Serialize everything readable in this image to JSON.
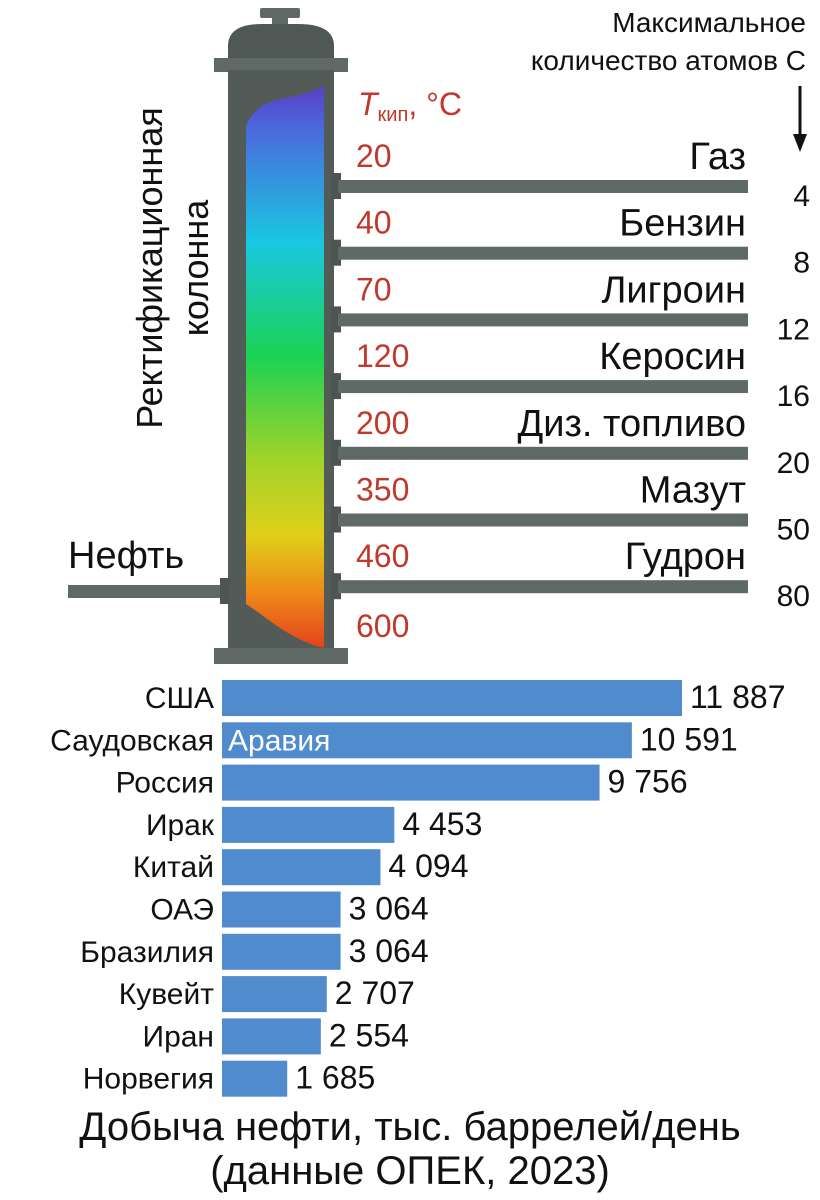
{
  "column": {
    "title_line1": "Ректификационная",
    "title_line2": "колонна",
    "input_label": "Нефть",
    "temp_header_symbol": "T",
    "temp_header_subscript": "кип",
    "temp_header_unit": ", °C",
    "atoms_header_line1": "Максимальное",
    "atoms_header_line2": "количество атомов С",
    "fractions": [
      {
        "name": "Газ",
        "temp": "20",
        "atoms": "4"
      },
      {
        "name": "Бензин",
        "temp": "40",
        "atoms": "8"
      },
      {
        "name": "Лигроин",
        "temp": "70",
        "atoms": "12"
      },
      {
        "name": "Керосин",
        "temp": "120",
        "atoms": "16"
      },
      {
        "name": "Диз. топливо",
        "temp": "200",
        "atoms": "20"
      },
      {
        "name": "Мазут",
        "temp": "350",
        "atoms": "50"
      },
      {
        "name": "Гудрон",
        "temp": "460",
        "atoms": "80"
      }
    ],
    "bottom_temp": "600"
  },
  "colors": {
    "pipe": "#5f6a66",
    "pipe_dark": "#4c5552",
    "temp_text": "#c0392b",
    "bar": "#4f8bcd"
  },
  "chart_data": {
    "type": "bar",
    "orientation": "horizontal",
    "categories": [
      "США",
      "Саудовская Аравия",
      "Россия",
      "Ирак",
      "Китай",
      "ОАЭ",
      "Бразилия",
      "Кувейт",
      "Иран",
      "Норвегия"
    ],
    "category_parts": [
      [
        "США",
        ""
      ],
      [
        "Саудовская",
        "Аравия"
      ],
      [
        "Россия",
        ""
      ],
      [
        "Ирак",
        ""
      ],
      [
        "Китай",
        ""
      ],
      [
        "ОАЭ",
        ""
      ],
      [
        "Бразилия",
        ""
      ],
      [
        "Кувейт",
        ""
      ],
      [
        "Иран",
        ""
      ],
      [
        "Норвегия",
        ""
      ]
    ],
    "values": [
      11887,
      10591,
      9756,
      4453,
      4094,
      3064,
      3064,
      2707,
      2554,
      1685
    ],
    "value_labels": [
      "11 887",
      "10 591",
      "9 756",
      "4 453",
      "4 094",
      "3 064",
      "3 064",
      "2 707",
      "2 554",
      "1 685"
    ],
    "title_line1": "Добыча нефти, тыс. баррелей/день",
    "title_line2": "(данные ОПЕК, 2023)",
    "xlim": [
      0,
      11887
    ],
    "grid": false
  }
}
